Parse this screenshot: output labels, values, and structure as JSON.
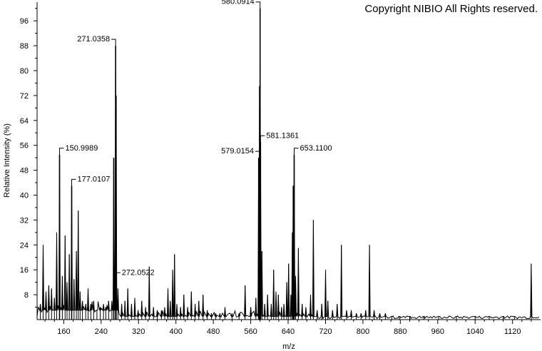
{
  "copyright": "Copyright NIBIO All Rights reserved.",
  "chart_data": {
    "type": "line",
    "xlabel": "m/z",
    "ylabel": "Relative Intensity (%)",
    "xlim": [
      103,
      1180
    ],
    "ylim": [
      0,
      102
    ],
    "xticks": [
      160,
      240,
      320,
      400,
      480,
      560,
      640,
      720,
      800,
      880,
      960,
      1040,
      1120
    ],
    "yticks": [
      8,
      16,
      24,
      32,
      40,
      48,
      56,
      64,
      72,
      80,
      88,
      96
    ],
    "grid": false,
    "peaks": [
      {
        "x": 110,
        "y": 5
      },
      {
        "x": 116,
        "y": 24
      },
      {
        "x": 122,
        "y": 9
      },
      {
        "x": 128,
        "y": 11
      },
      {
        "x": 134,
        "y": 10
      },
      {
        "x": 140,
        "y": 7
      },
      {
        "x": 145,
        "y": 28
      },
      {
        "x": 151,
        "y": 53
      },
      {
        "x": 157,
        "y": 14
      },
      {
        "x": 163,
        "y": 27
      },
      {
        "x": 167,
        "y": 12
      },
      {
        "x": 172,
        "y": 21
      },
      {
        "x": 177,
        "y": 43
      },
      {
        "x": 182,
        "y": 13
      },
      {
        "x": 187,
        "y": 22
      },
      {
        "x": 191,
        "y": 35
      },
      {
        "x": 195,
        "y": 9
      },
      {
        "x": 200,
        "y": 6
      },
      {
        "x": 207,
        "y": 5
      },
      {
        "x": 212,
        "y": 10
      },
      {
        "x": 218,
        "y": 5
      },
      {
        "x": 224,
        "y": 6
      },
      {
        "x": 231,
        "y": 3
      },
      {
        "x": 238,
        "y": 4
      },
      {
        "x": 245,
        "y": 5
      },
      {
        "x": 250,
        "y": 4
      },
      {
        "x": 256,
        "y": 6
      },
      {
        "x": 263,
        "y": 6
      },
      {
        "x": 267,
        "y": 52
      },
      {
        "x": 271,
        "y": 88
      },
      {
        "x": 272,
        "y": 72
      },
      {
        "x": 276,
        "y": 10
      },
      {
        "x": 284,
        "y": 5
      },
      {
        "x": 291,
        "y": 6
      },
      {
        "x": 297,
        "y": 10
      },
      {
        "x": 305,
        "y": 5
      },
      {
        "x": 312,
        "y": 7
      },
      {
        "x": 319,
        "y": 3
      },
      {
        "x": 327,
        "y": 6
      },
      {
        "x": 335,
        "y": 4
      },
      {
        "x": 343,
        "y": 17
      },
      {
        "x": 352,
        "y": 4
      },
      {
        "x": 360,
        "y": 3
      },
      {
        "x": 369,
        "y": 3
      },
      {
        "x": 376,
        "y": 4
      },
      {
        "x": 383,
        "y": 10
      },
      {
        "x": 388,
        "y": 6
      },
      {
        "x": 393,
        "y": 16
      },
      {
        "x": 397,
        "y": 21
      },
      {
        "x": 402,
        "y": 5
      },
      {
        "x": 410,
        "y": 4
      },
      {
        "x": 417,
        "y": 8
      },
      {
        "x": 425,
        "y": 4
      },
      {
        "x": 433,
        "y": 9
      },
      {
        "x": 441,
        "y": 5
      },
      {
        "x": 449,
        "y": 6
      },
      {
        "x": 458,
        "y": 8
      },
      {
        "x": 467,
        "y": 3
      },
      {
        "x": 476,
        "y": 2
      },
      {
        "x": 485,
        "y": 2
      },
      {
        "x": 494,
        "y": 2
      },
      {
        "x": 505,
        "y": 4
      },
      {
        "x": 520,
        "y": 2
      },
      {
        "x": 535,
        "y": 2
      },
      {
        "x": 548,
        "y": 11
      },
      {
        "x": 560,
        "y": 4
      },
      {
        "x": 571,
        "y": 7
      },
      {
        "x": 577,
        "y": 52
      },
      {
        "x": 579,
        "y": 75
      },
      {
        "x": 580,
        "y": 100
      },
      {
        "x": 581,
        "y": 57
      },
      {
        "x": 584,
        "y": 22
      },
      {
        "x": 590,
        "y": 5
      },
      {
        "x": 596,
        "y": 8
      },
      {
        "x": 604,
        "y": 5
      },
      {
        "x": 609,
        "y": 16
      },
      {
        "x": 614,
        "y": 9
      },
      {
        "x": 619,
        "y": 8
      },
      {
        "x": 626,
        "y": 4
      },
      {
        "x": 631,
        "y": 5
      },
      {
        "x": 637,
        "y": 12
      },
      {
        "x": 641,
        "y": 18
      },
      {
        "x": 646,
        "y": 8
      },
      {
        "x": 649,
        "y": 28
      },
      {
        "x": 651,
        "y": 43
      },
      {
        "x": 653,
        "y": 53
      },
      {
        "x": 656,
        "y": 14
      },
      {
        "x": 662,
        "y": 23
      },
      {
        "x": 670,
        "y": 5
      },
      {
        "x": 678,
        "y": 4
      },
      {
        "x": 688,
        "y": 8
      },
      {
        "x": 694,
        "y": 32
      },
      {
        "x": 702,
        "y": 3
      },
      {
        "x": 712,
        "y": 5
      },
      {
        "x": 720,
        "y": 16
      },
      {
        "x": 725,
        "y": 6
      },
      {
        "x": 735,
        "y": 3
      },
      {
        "x": 745,
        "y": 5
      },
      {
        "x": 754,
        "y": 24
      },
      {
        "x": 765,
        "y": 3
      },
      {
        "x": 775,
        "y": 3
      },
      {
        "x": 786,
        "y": 2
      },
      {
        "x": 796,
        "y": 2
      },
      {
        "x": 806,
        "y": 3
      },
      {
        "x": 814,
        "y": 24
      },
      {
        "x": 824,
        "y": 3
      },
      {
        "x": 836,
        "y": 2
      },
      {
        "x": 848,
        "y": 2
      },
      {
        "x": 862,
        "y": 1
      },
      {
        "x": 878,
        "y": 1
      },
      {
        "x": 900,
        "y": 1
      },
      {
        "x": 930,
        "y": 1
      },
      {
        "x": 962,
        "y": 1
      },
      {
        "x": 1000,
        "y": 1
      },
      {
        "x": 1040,
        "y": 1
      },
      {
        "x": 1070,
        "y": 1
      },
      {
        "x": 1100,
        "y": 1
      },
      {
        "x": 1124,
        "y": 1
      },
      {
        "x": 1160,
        "y": 18
      }
    ],
    "annotations": [
      {
        "text": "580.0914",
        "x": 580,
        "y": 100
      },
      {
        "text": "271.0358",
        "x": 271,
        "y": 88
      },
      {
        "text": "150.9989",
        "x": 151,
        "y": 53
      },
      {
        "text": "581.1361",
        "x": 581,
        "y": 57
      },
      {
        "text": "579.0154",
        "x": 579,
        "y": 52
      },
      {
        "text": "653.1100",
        "x": 653,
        "y": 53
      },
      {
        "text": "177.0107",
        "x": 177,
        "y": 43
      },
      {
        "text": "272.0522",
        "x": 272,
        "y": 13
      }
    ]
  }
}
